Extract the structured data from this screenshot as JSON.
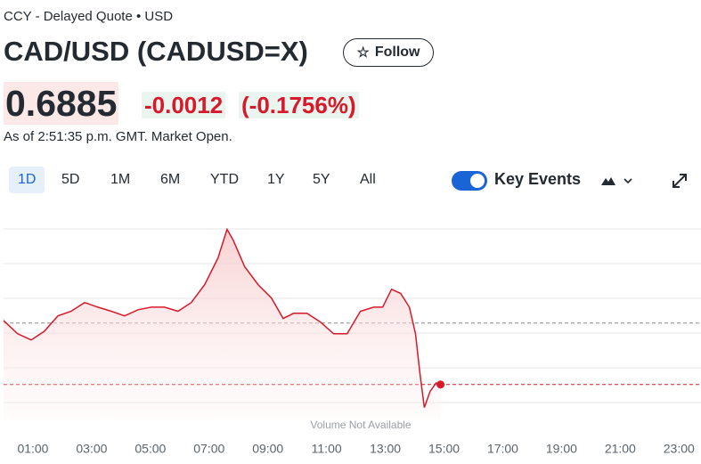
{
  "header": {
    "source": "CCY - Delayed Quote • USD",
    "title": "CAD/USD (CADUSD=X)",
    "follow": "Follow"
  },
  "quote": {
    "price": "0.6885",
    "change": "-0.0012",
    "change_percent": "(-0.1756%)",
    "as_of": "As of 2:51:35 p.m. GMT. Market Open."
  },
  "ranges": [
    "1D",
    "5D",
    "1M",
    "6M",
    "YTD",
    "1Y",
    "5Y",
    "All"
  ],
  "key_events": "Key Events",
  "chart_data": {
    "type": "line",
    "note": "Volume Not Available",
    "x": [
      0,
      0.48,
      0.94,
      1.39,
      1.85,
      2.3,
      2.76,
      3.21,
      3.67,
      4.12,
      4.58,
      5.03,
      5.48,
      5.94,
      6.39,
      6.85,
      7.3,
      7.61,
      7.82,
      8.21,
      8.67,
      9.12,
      9.52,
      9.88,
      10.33,
      10.79,
      11.24,
      11.7,
      12.15,
      12.61,
      12.91,
      13.21,
      13.52,
      13.82,
      14.03,
      14.18,
      14.33,
      14.52,
      14.73,
      14.88
    ],
    "series": [
      {
        "color": "#d7192a",
        "values": [
          0.68975,
          0.68949,
          0.68937,
          0.68954,
          0.68984,
          0.68993,
          0.6901,
          0.69001,
          0.68993,
          0.68984,
          0.68996,
          0.69001,
          0.69001,
          0.68993,
          0.6901,
          0.69045,
          0.69097,
          0.69153,
          0.69132,
          0.6908,
          0.69045,
          0.69019,
          0.68979,
          0.68989,
          0.68989,
          0.68972,
          0.68949,
          0.68949,
          0.68993,
          0.69001,
          0.69001,
          0.69036,
          0.69028,
          0.69001,
          0.68949,
          0.68871,
          0.68805,
          0.68836,
          0.68853,
          0.6885
        ]
      }
    ],
    "reference_lines": [
      {
        "value": 0.6897,
        "color": "#8a8a8a"
      },
      {
        "value": 0.6885,
        "color": "#d7192a"
      }
    ],
    "xlim": [
      0,
      23.75
    ],
    "ylim": [
      0.6878,
      0.6918
    ],
    "xticks": [
      {
        "value": 1,
        "label": "01:00"
      },
      {
        "value": 3,
        "label": "03:00"
      },
      {
        "value": 5,
        "label": "05:00"
      },
      {
        "value": 7,
        "label": "07:00"
      },
      {
        "value": 9,
        "label": "09:00"
      },
      {
        "value": 11,
        "label": "11:00"
      },
      {
        "value": 13,
        "label": "13:00"
      },
      {
        "value": 15,
        "label": "15:00"
      },
      {
        "value": 17,
        "label": "17:00"
      },
      {
        "value": 19,
        "label": "19:00"
      },
      {
        "value": 21,
        "label": "21:00"
      },
      {
        "value": 23,
        "label": "23:00"
      }
    ]
  }
}
